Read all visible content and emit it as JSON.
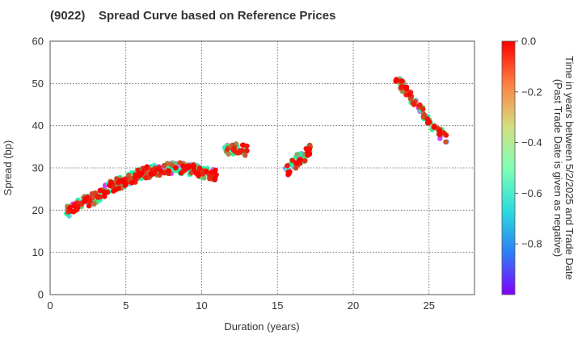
{
  "chart_data": {
    "type": "scatter",
    "title_code": "(9022)",
    "title": "Spread Curve based on Reference Prices",
    "xlabel": "Duration (years)",
    "ylabel": "Spread (bp)",
    "xlim": [
      0,
      28
    ],
    "ylim": [
      0,
      60
    ],
    "xticks": [
      0,
      5,
      10,
      15,
      20,
      25
    ],
    "yticks": [
      0,
      10,
      20,
      30,
      40,
      50,
      60
    ],
    "grid": true,
    "colorbar": {
      "label_line1": "Time in years between 5/2/2025 and Trade Date",
      "label_line2": "(Past Trade Date is given as negative)",
      "range": [
        -1.0,
        0.0
      ],
      "ticks": [
        0.0,
        -0.2,
        -0.4,
        -0.6,
        -0.8
      ],
      "tick_labels": [
        "0.0",
        "−0.2",
        "−0.4",
        "−0.6",
        "−0.8"
      ],
      "colormap": "rainbow"
    },
    "clusters": [
      {
        "name": "curve-short",
        "segments": [
          [
            1.0,
            19.5
          ],
          [
            2.0,
            21.5
          ],
          [
            3.0,
            23.0
          ],
          [
            4.0,
            25.5
          ],
          [
            5.0,
            27.0
          ],
          [
            6.0,
            28.5
          ],
          [
            7.0,
            29.5
          ],
          [
            8.0,
            30.0
          ],
          [
            9.0,
            30.0
          ],
          [
            10.0,
            29.0
          ],
          [
            11.0,
            28.5
          ]
        ],
        "spread_noise": 1.4,
        "count": 330
      },
      {
        "name": "cluster-12y",
        "segments": [
          [
            11.5,
            34.0
          ],
          [
            12.2,
            34.5
          ],
          [
            13.0,
            34.0
          ]
        ],
        "spread_noise": 1.3,
        "count": 40
      },
      {
        "name": "cluster-16y",
        "segments": [
          [
            15.5,
            28.5
          ],
          [
            16.0,
            30.5
          ],
          [
            16.5,
            32.5
          ],
          [
            17.2,
            34.0
          ]
        ],
        "spread_noise": 1.6,
        "count": 50
      },
      {
        "name": "cluster-25y",
        "segments": [
          [
            22.8,
            51.5
          ],
          [
            23.5,
            48.0
          ],
          [
            24.2,
            45.0
          ],
          [
            25.0,
            41.0
          ],
          [
            25.5,
            38.5
          ],
          [
            26.3,
            37.0
          ]
        ],
        "spread_noise": 1.3,
        "count": 95
      }
    ]
  }
}
